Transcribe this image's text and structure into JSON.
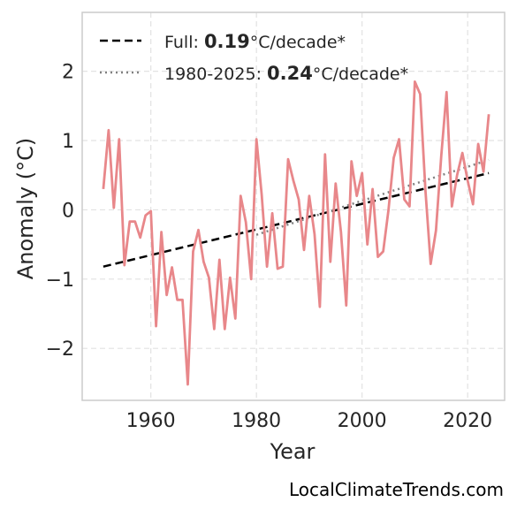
{
  "chart_data": {
    "type": "line",
    "xlabel": "Year",
    "ylabel": "Anomaly (°C)",
    "xlim": [
      1947,
      2027
    ],
    "ylim": [
      -2.75,
      2.85
    ],
    "x_ticks": [
      1960,
      1980,
      2000,
      2020
    ],
    "x_tick_labels": [
      "1960",
      "1980",
      "2000",
      "2020"
    ],
    "y_ticks": [
      -2,
      -1,
      0,
      1,
      2
    ],
    "y_tick_labels": [
      "−2",
      "−1",
      "0",
      "1",
      "2"
    ],
    "grid": true,
    "legend_position": "top-left",
    "colors": {
      "series": "#e8878a",
      "trend_full": "#000000",
      "trend_recent": "#808080",
      "frame": "#cccccc",
      "grid": "#e2e2e2"
    },
    "series": [
      {
        "x": [
          1951,
          1952,
          1953,
          1954,
          1955,
          1956,
          1957,
          1958,
          1959,
          1960,
          1961,
          1962,
          1963,
          1964,
          1965,
          1966,
          1967,
          1968,
          1969,
          1970,
          1971,
          1972,
          1973,
          1974,
          1975,
          1976,
          1977,
          1978,
          1979,
          1980,
          1981,
          1982,
          1983,
          1984,
          1985,
          1986,
          1987,
          1988,
          1989,
          1990,
          1991,
          1992,
          1993,
          1994,
          1995,
          1996,
          1997,
          1998,
          1999,
          2000,
          2001,
          2002,
          2003,
          2004,
          2005,
          2006,
          2007,
          2008,
          2009,
          2010,
          2011,
          2012,
          2013,
          2014,
          2015,
          2016,
          2017,
          2018,
          2019,
          2020,
          2021,
          2022,
          2023,
          2024
        ],
        "values": [
          0.3,
          1.15,
          0.03,
          1.02,
          -0.8,
          -0.17,
          -0.17,
          -0.4,
          -0.08,
          -0.02,
          -1.68,
          -0.32,
          -1.23,
          -0.83,
          -1.3,
          -1.3,
          -2.52,
          -0.6,
          -0.29,
          -0.75,
          -0.98,
          -1.72,
          -0.72,
          -1.72,
          -0.98,
          -1.57,
          0.2,
          -0.18,
          -1.0,
          1.02,
          0.22,
          -0.82,
          -0.05,
          -0.85,
          -0.82,
          0.73,
          0.42,
          0.15,
          -0.58,
          0.2,
          -0.35,
          -1.4,
          0.8,
          -0.75,
          0.38,
          -0.32,
          -1.38,
          0.7,
          0.2,
          0.53,
          -0.5,
          0.3,
          -0.68,
          -0.6,
          0.0,
          0.75,
          1.02,
          0.15,
          0.05,
          1.85,
          1.67,
          0.28,
          -0.78,
          -0.3,
          0.78,
          1.7,
          0.05,
          0.5,
          0.82,
          0.42,
          0.08,
          0.95,
          0.55,
          1.38
        ]
      }
    ],
    "trends": [
      {
        "style": "dashed",
        "x": [
          1951,
          2024
        ],
        "y": [
          -0.82,
          0.53
        ]
      },
      {
        "style": "dotted",
        "x": [
          1980,
          2024
        ],
        "y": [
          -0.36,
          0.72
        ]
      }
    ]
  },
  "legend": {
    "items": [
      {
        "prefix": "Full: ",
        "value": "0.19",
        "suffix": "°C/decade*"
      },
      {
        "prefix": "1980-2025: ",
        "value": "0.24",
        "suffix": "°C/decade*"
      }
    ]
  },
  "footer": "LocalClimateTrends.com"
}
